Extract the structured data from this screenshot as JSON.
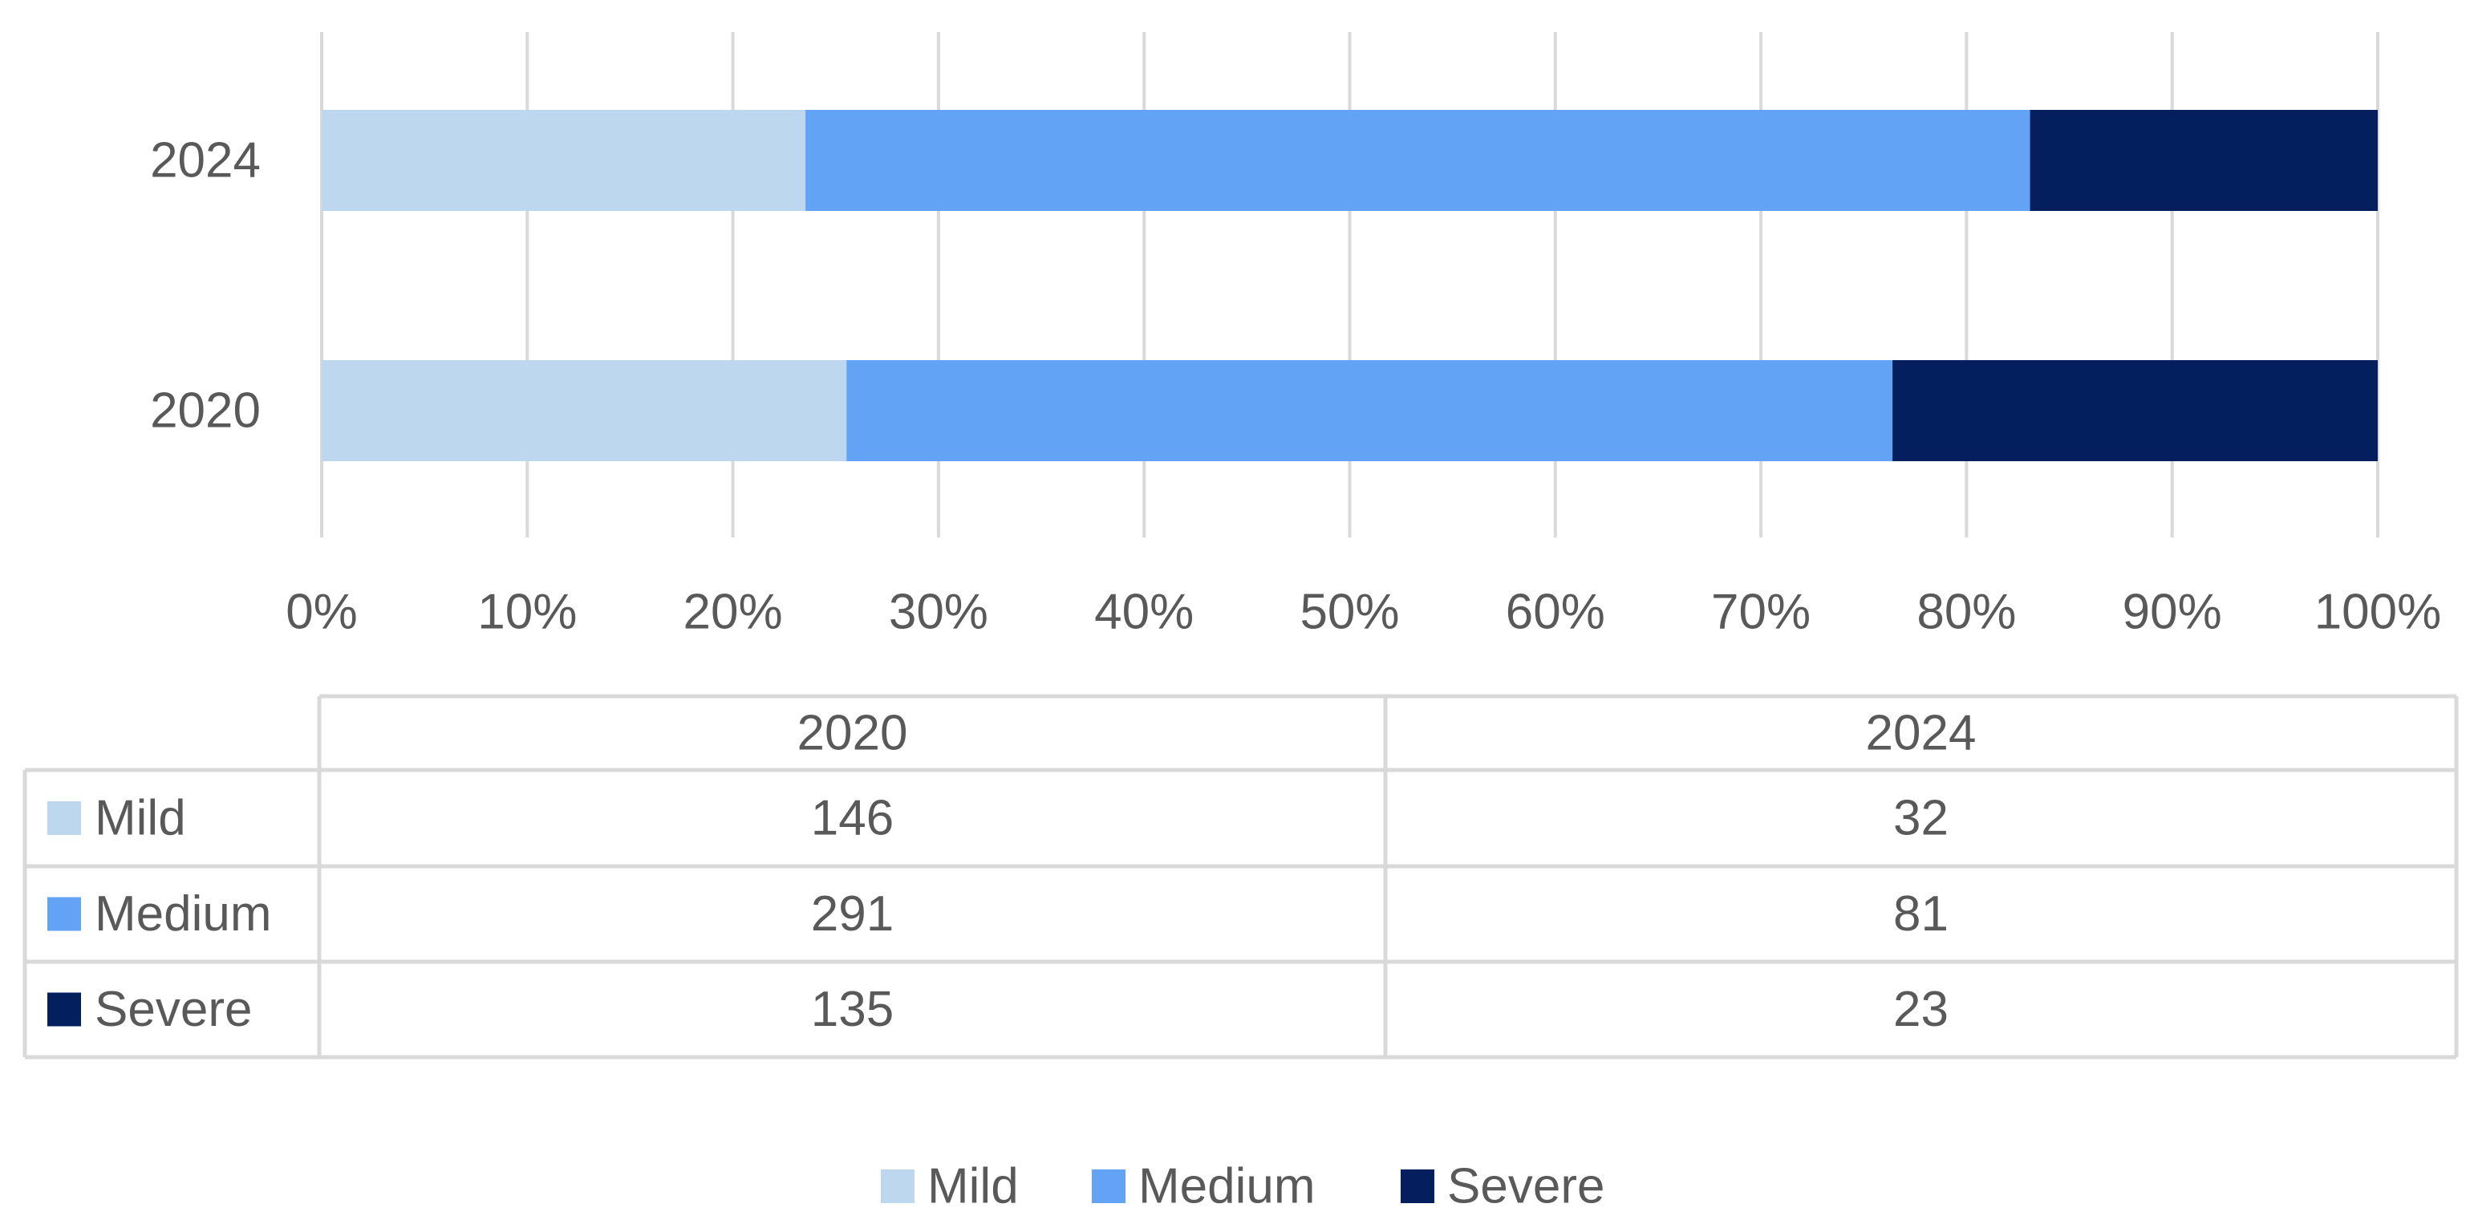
{
  "chart_data": {
    "type": "bar",
    "orientation": "horizontal",
    "stacking": "percent",
    "categories": [
      "2020",
      "2024"
    ],
    "series": [
      {
        "name": "Mild",
        "color": "#bdd7ee",
        "values": [
          146,
          32
        ]
      },
      {
        "name": "Medium",
        "color": "#62a3f5",
        "values": [
          291,
          81
        ]
      },
      {
        "name": "Severe",
        "color": "#031f5e",
        "values": [
          135,
          23
        ]
      }
    ],
    "x_axis": {
      "range": [
        0,
        100
      ],
      "tick_labels": [
        "0%",
        "10%",
        "20%",
        "30%",
        "40%",
        "50%",
        "60%",
        "70%",
        "80%",
        "90%",
        "100%"
      ]
    },
    "grid": true,
    "data_table": true,
    "legend_position": "bottom"
  }
}
